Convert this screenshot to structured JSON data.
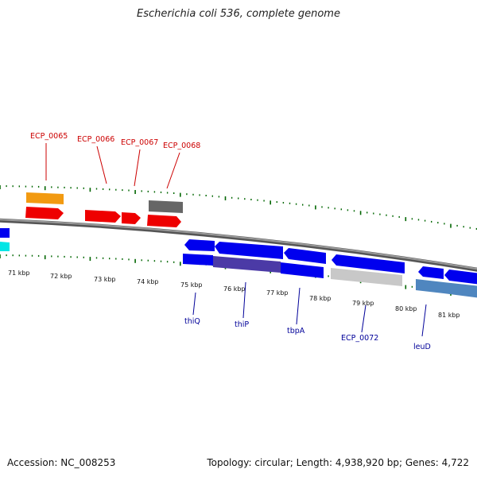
{
  "title": "Escherichia coli 536, complete genome",
  "footer": {
    "accession": "Accession: NC_008253",
    "stats": "Topology: circular; Length: 4,938,920 bp; Genes: 4,722"
  },
  "colors": {
    "forward_label": "#cc0000",
    "reverse_label": "#000099",
    "backbone": "#808080",
    "ticks": "#006600"
  },
  "kbp_labels": [
    "71 kbp",
    "72 kbp",
    "73 kbp",
    "74 kbp",
    "75 kbp",
    "76 kbp",
    "77 kbp",
    "78 kbp",
    "79 kbp",
    "80 kbp",
    "81 kbp"
  ],
  "forward_genes": [
    "ECP_0065",
    "ECP_0066",
    "ECP_0067",
    "ECP_0068"
  ],
  "reverse_genes": [
    "thiQ",
    "thiP",
    "tbpA",
    "ECP_0072",
    "leuD"
  ]
}
